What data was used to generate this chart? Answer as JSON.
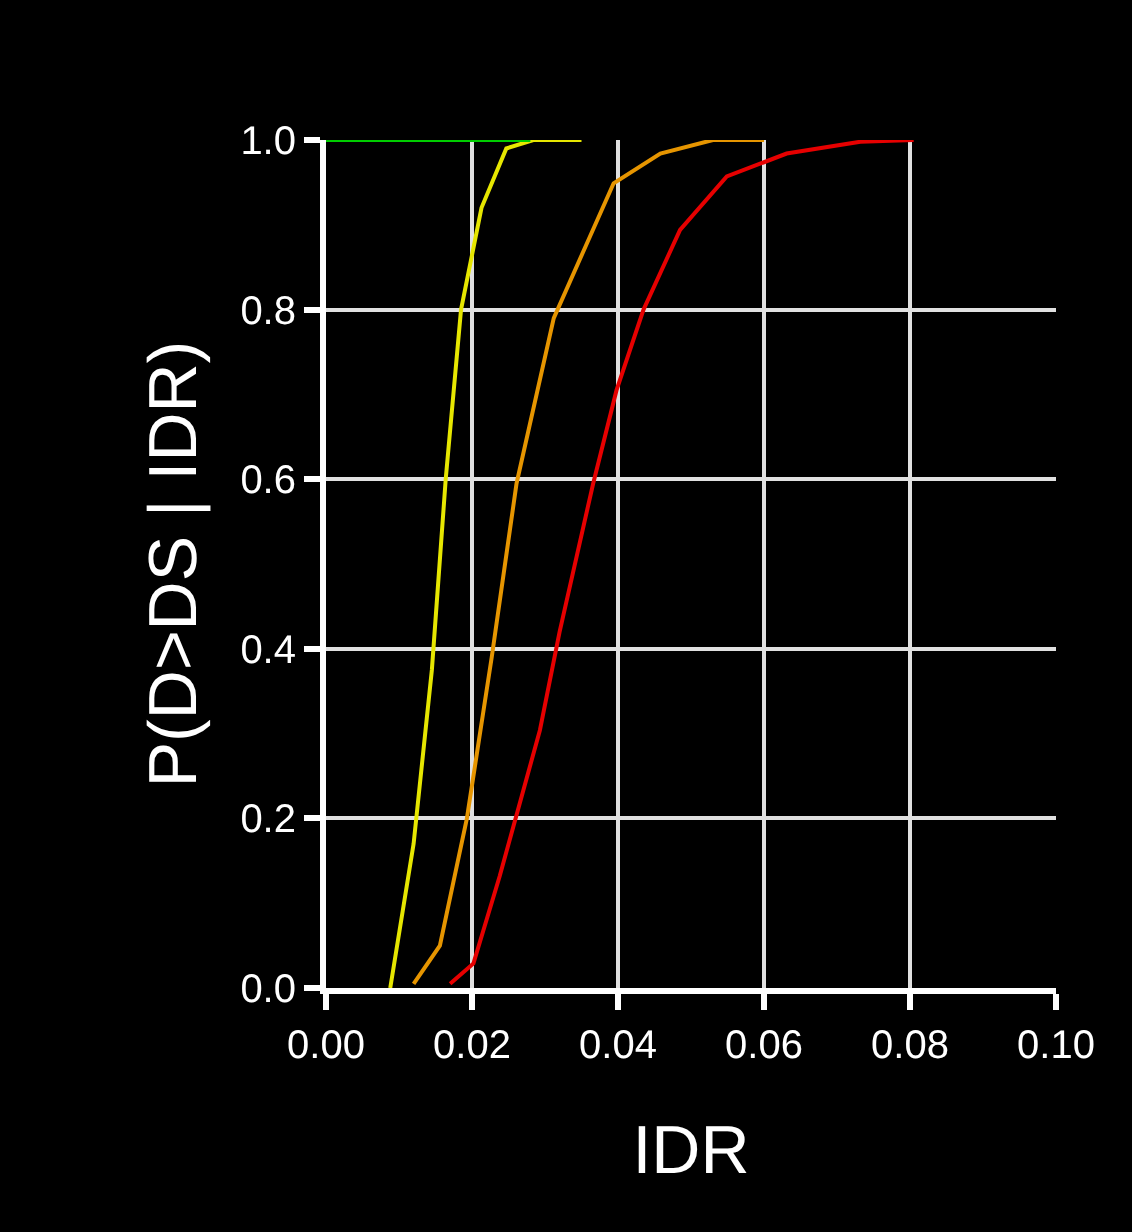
{
  "chart_data": {
    "type": "line",
    "xlabel": "IDR",
    "ylabel": "P(D>DS | IDR)",
    "xlim": [
      0,
      0.1
    ],
    "ylim": [
      0,
      1
    ],
    "xticks": [
      {
        "value": 0,
        "label": "0.00"
      },
      {
        "value": 0.02,
        "label": "0.02"
      },
      {
        "value": 0.04,
        "label": "0.04"
      },
      {
        "value": 0.06,
        "label": "0.06"
      },
      {
        "value": 0.08,
        "label": "0.08"
      },
      {
        "value": 0.1,
        "label": "0.10"
      }
    ],
    "yticks": [
      {
        "value": 0,
        "label": "0.0"
      },
      {
        "value": 0.2,
        "label": "0.2"
      },
      {
        "value": 0.4,
        "label": "0.4"
      },
      {
        "value": 0.6,
        "label": "0.6"
      },
      {
        "value": 0.8,
        "label": "0.8"
      },
      {
        "value": 1,
        "label": "1.0"
      }
    ],
    "grid": true,
    "marker": "none",
    "line_style": "solid",
    "series": [
      {
        "color": "#00cc00",
        "x": [
          0,
          0.028
        ],
        "values": [
          1,
          1
        ]
      },
      {
        "color": "#e6e600",
        "x": [
          0.0088,
          0.012,
          0.0145,
          0.0164,
          0.0185,
          0.0213,
          0.0247,
          0.0284,
          0.035
        ],
        "values": [
          0,
          0.17,
          0.375,
          0.6,
          0.8,
          0.92,
          0.99,
          1,
          1
        ]
      },
      {
        "color": "#e69500",
        "x": [
          0.012,
          0.0156,
          0.0193,
          0.0227,
          0.0261,
          0.0312,
          0.0394,
          0.0458,
          0.053,
          0.06
        ],
        "values": [
          0.005,
          0.05,
          0.2,
          0.39,
          0.595,
          0.79,
          0.949,
          0.984,
          1,
          1
        ]
      },
      {
        "color": "#e60000",
        "x": [
          0.017,
          0.0202,
          0.0238,
          0.0293,
          0.032,
          0.0366,
          0.0398,
          0.0435,
          0.0485,
          0.0549,
          0.0631,
          0.0732,
          0.0805
        ],
        "values": [
          0.005,
          0.029,
          0.132,
          0.304,
          0.42,
          0.595,
          0.705,
          0.8,
          0.894,
          0.957,
          0.984,
          0.998,
          1
        ]
      }
    ]
  }
}
